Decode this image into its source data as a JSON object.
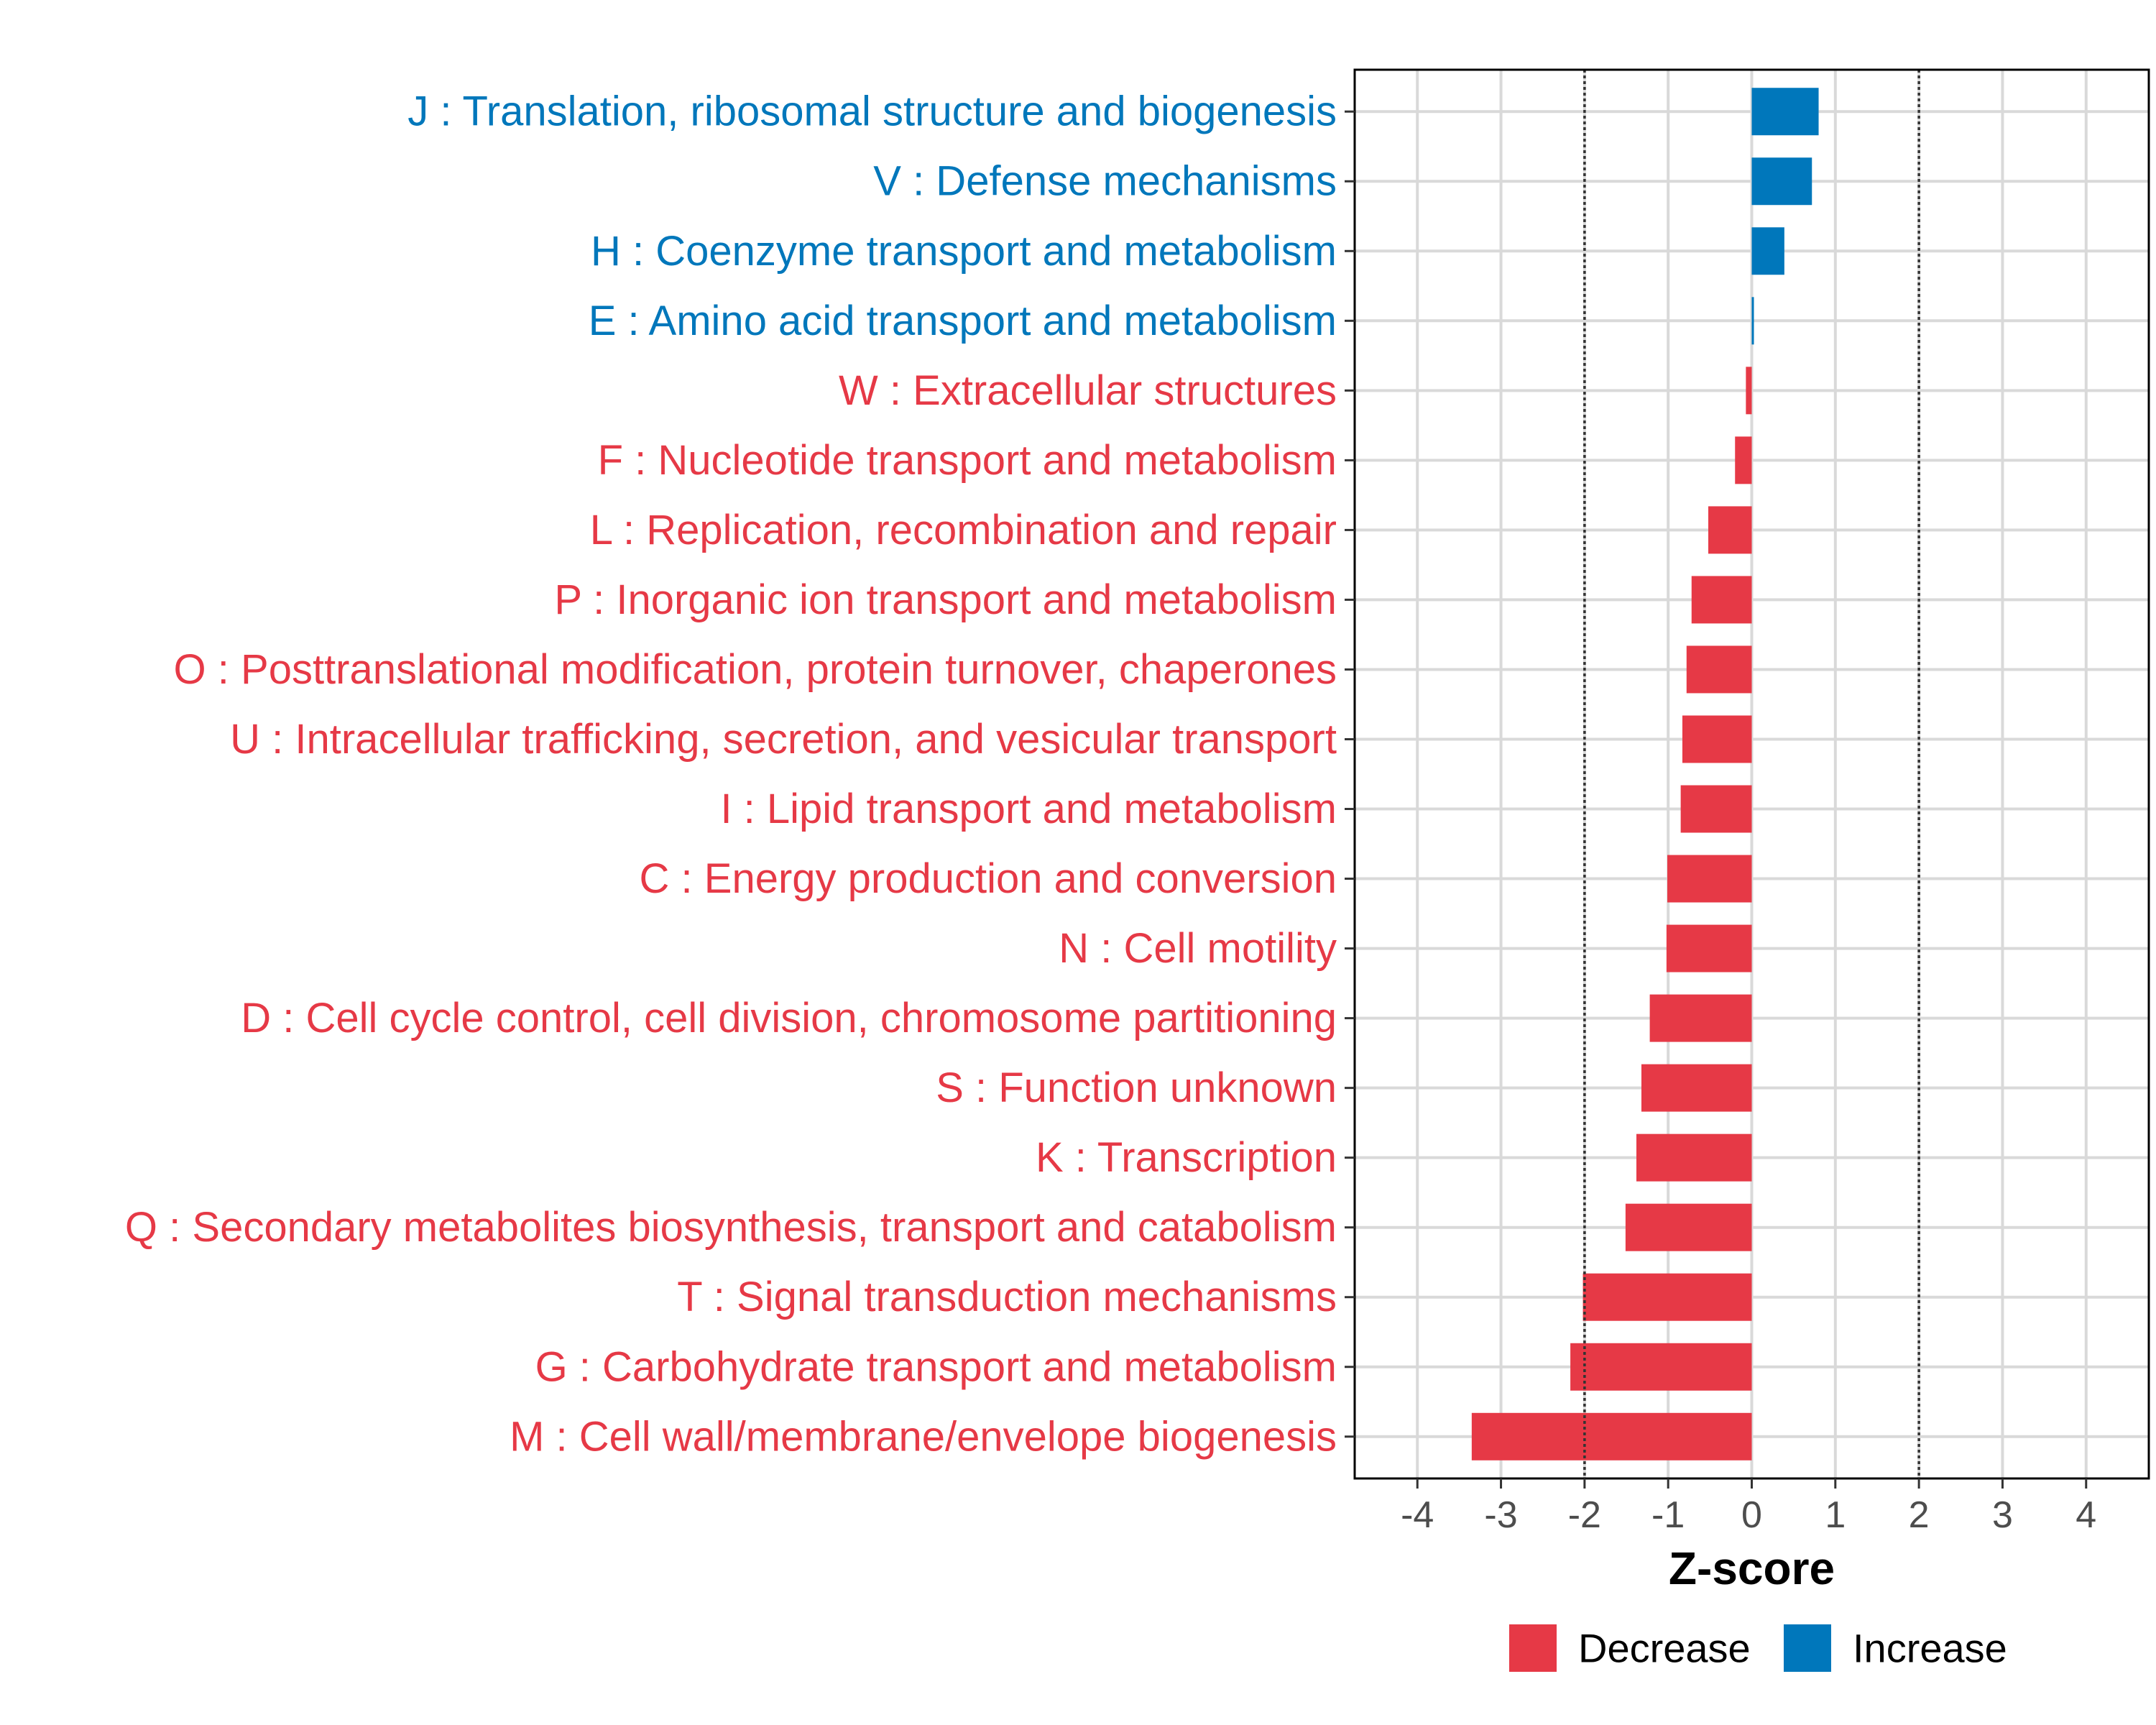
{
  "chart_data": {
    "type": "bar",
    "orientation": "horizontal",
    "title": "",
    "xlabel": "Z-score",
    "ylabel": "",
    "xlim": [
      -4.75,
      4.75
    ],
    "xticks": [
      -4,
      -3,
      -2,
      -1,
      0,
      1,
      2,
      3,
      4
    ],
    "threshold_lines": [
      -2,
      2
    ],
    "grid": true,
    "categories": [
      "J : Translation, ribosomal structure and biogenesis",
      "V : Defense mechanisms",
      "H : Coenzyme transport and metabolism",
      "E : Amino acid transport and metabolism",
      "W : Extracellular structures",
      "F : Nucleotide transport and metabolism",
      "L : Replication, recombination and repair",
      "P : Inorganic ion transport and metabolism",
      "O : Posttranslational modification, protein turnover, chaperones",
      "U : Intracellular trafficking, secretion, and vesicular transport",
      "I : Lipid transport and metabolism",
      "C : Energy production and conversion",
      "N : Cell motility",
      "D : Cell cycle control, cell division, chromosome partitioning",
      "S : Function unknown",
      "K : Transcription",
      "Q : Secondary metabolites biosynthesis, transport and catabolism",
      "T : Signal transduction mechanisms",
      "G : Carbohydrate transport and metabolism",
      "M : Cell wall/membrane/envelope biogenesis"
    ],
    "values": [
      0.8,
      0.72,
      0.39,
      0.02,
      -0.07,
      -0.2,
      -0.52,
      -0.72,
      -0.78,
      -0.83,
      -0.85,
      -1.01,
      -1.02,
      -1.22,
      -1.32,
      -1.38,
      -1.51,
      -2.02,
      -2.17,
      -3.35
    ],
    "legend": [
      {
        "label": "Decrease",
        "color": "#e63946"
      },
      {
        "label": "Increase",
        "color": "#0077bb"
      }
    ],
    "legend_position": "bottom"
  }
}
